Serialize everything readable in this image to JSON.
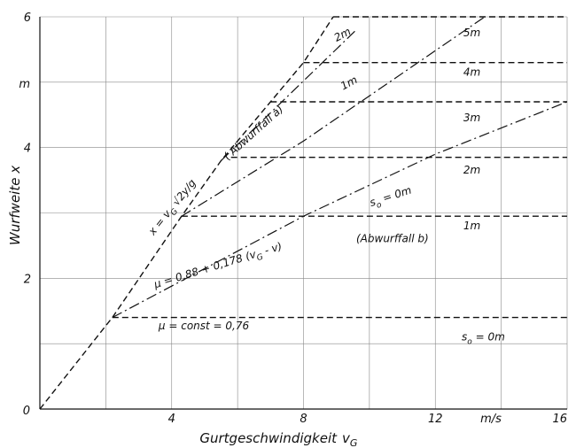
{
  "chart_data": {
    "type": "line",
    "title": "",
    "xlabel": "Gurtgeschwindigkeit",
    "xlabel_symbol": "v",
    "xlabel_subscript": "G",
    "ylabel": "Wurfweite x",
    "x_unit": "m/s",
    "y_unit": "m",
    "xlim": [
      0,
      16
    ],
    "ylim": [
      0,
      6
    ],
    "origin_label": "0",
    "x_ticks": [
      {
        "value": 4,
        "label": "4"
      },
      {
        "value": 8,
        "label": "8"
      },
      {
        "value": 12,
        "label": "12"
      },
      {
        "value": 16,
        "label": "16"
      }
    ],
    "y_ticks": [
      {
        "value": 2,
        "label": "2"
      },
      {
        "value": 4,
        "label": "4"
      },
      {
        "value": 6,
        "label": "6"
      }
    ],
    "grid": true,
    "grid_x": [
      2,
      4,
      6,
      8,
      10,
      12,
      14,
      16
    ],
    "grid_y": [
      1,
      2,
      3,
      4,
      5,
      6
    ],
    "series": [
      {
        "style": "dashed",
        "points": [
          [
            0,
            0
          ],
          [
            2.2,
            1.4
          ],
          [
            4.3,
            2.95
          ],
          [
            5.5,
            3.8
          ],
          [
            7,
            4.7
          ],
          [
            8,
            5.3
          ],
          [
            8.9,
            6
          ]
        ]
      },
      {
        "style": "dashdot",
        "points": [
          [
            2.2,
            1.4
          ],
          [
            8,
            2.95
          ],
          [
            12,
            3.9
          ],
          [
            16,
            4.7
          ]
        ]
      },
      {
        "style": "dashdot",
        "points": [
          [
            4.3,
            2.95
          ],
          [
            8,
            4.1
          ],
          [
            13.5,
            6
          ]
        ]
      },
      {
        "style": "dashdot",
        "points": [
          [
            5.5,
            3.8
          ],
          [
            9.6,
            5.8
          ]
        ]
      },
      {
        "style": "dashed",
        "points": [
          [
            2.2,
            1.4
          ],
          [
            16,
            1.4
          ]
        ]
      },
      {
        "style": "dashed",
        "points": [
          [
            4.3,
            2.95
          ],
          [
            16,
            2.95
          ]
        ]
      },
      {
        "style": "dashed",
        "points": [
          [
            5.8,
            3.85
          ],
          [
            16,
            3.85
          ]
        ]
      },
      {
        "style": "dashed",
        "points": [
          [
            7,
            4.7
          ],
          [
            16,
            4.7
          ]
        ]
      },
      {
        "style": "dashed",
        "points": [
          [
            8,
            5.3
          ],
          [
            16,
            5.3
          ]
        ]
      },
      {
        "style": "dashed",
        "points": [
          [
            8.9,
            6
          ],
          [
            16,
            6
          ]
        ]
      }
    ],
    "annotations": [
      {
        "text": "x = v",
        "sub": "G",
        "sqrt": "2y/g",
        "x": 3.45,
        "y": 2.65,
        "rotate": -51
      },
      {
        "text": "( Abwurffall a)",
        "x": 5.7,
        "y": 3.8,
        "rotate": -42
      },
      {
        "text": "(Abwurffall b)",
        "x": 9.6,
        "y": 2.55,
        "rotate": 0
      },
      {
        "text": "μ = 0,88 + 0,178 (v",
        "sub": "G",
        "text_after": " - v)",
        "x": 3.5,
        "y": 1.85,
        "rotate": -17
      },
      {
        "text": "μ = const = 0,76",
        "x": 3.6,
        "y": 1.22,
        "rotate": 0
      },
      {
        "text": "s",
        "sub": "o",
        "text_after": " = 0m",
        "x": 10.05,
        "y": 3.1,
        "rotate": -18
      },
      {
        "text": "s",
        "sub": "o",
        "text_after": " = 0m",
        "x": 12.8,
        "y": 1.05,
        "rotate": 0
      },
      {
        "text": "1m",
        "x": 12.85,
        "y": 2.75,
        "rotate": 0
      },
      {
        "text": "2m",
        "x": 12.85,
        "y": 3.6,
        "rotate": 0
      },
      {
        "text": "3m",
        "x": 12.85,
        "y": 4.4,
        "rotate": 0
      },
      {
        "text": "4m",
        "x": 12.85,
        "y": 5.1,
        "rotate": 0
      },
      {
        "text": "5m",
        "x": 12.85,
        "y": 5.7,
        "rotate": 0
      },
      {
        "text": "1m",
        "x": 9.2,
        "y": 4.88,
        "rotate": -28
      },
      {
        "text": "2m",
        "x": 9.0,
        "y": 5.62,
        "rotate": -28
      }
    ]
  }
}
